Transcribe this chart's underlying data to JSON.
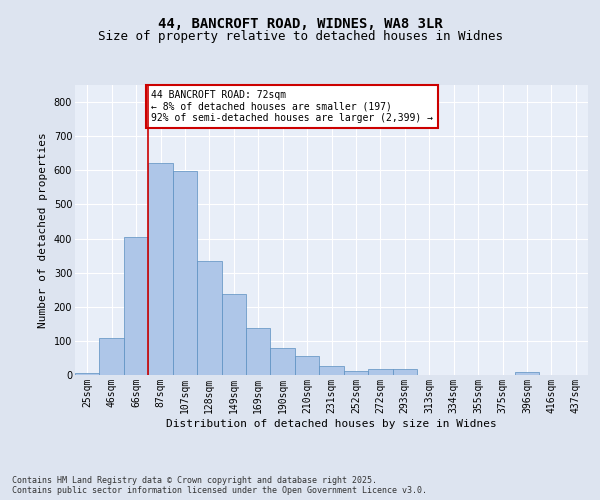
{
  "title1": "44, BANCROFT ROAD, WIDNES, WA8 3LR",
  "title2": "Size of property relative to detached houses in Widnes",
  "xlabel": "Distribution of detached houses by size in Widnes",
  "ylabel": "Number of detached properties",
  "categories": [
    "25sqm",
    "46sqm",
    "66sqm",
    "87sqm",
    "107sqm",
    "128sqm",
    "149sqm",
    "169sqm",
    "190sqm",
    "210sqm",
    "231sqm",
    "252sqm",
    "272sqm",
    "293sqm",
    "313sqm",
    "334sqm",
    "355sqm",
    "375sqm",
    "396sqm",
    "416sqm",
    "437sqm"
  ],
  "values": [
    5,
    108,
    405,
    620,
    598,
    335,
    237,
    137,
    78,
    55,
    27,
    12,
    17,
    17,
    0,
    0,
    0,
    0,
    8,
    0,
    0
  ],
  "bar_color": "#aec6e8",
  "bar_edge_color": "#5a8fc0",
  "background_color": "#dde4f0",
  "plot_bg_color": "#e8eef8",
  "grid_color": "#ffffff",
  "vline_x": 2.5,
  "vline_color": "#cc0000",
  "annotation_text": "44 BANCROFT ROAD: 72sqm\n← 8% of detached houses are smaller (197)\n92% of semi-detached houses are larger (2,399) →",
  "annotation_box_facecolor": "#ffffff",
  "annotation_box_edge_color": "#cc0000",
  "ylim": [
    0,
    850
  ],
  "yticks": [
    0,
    100,
    200,
    300,
    400,
    500,
    600,
    700,
    800
  ],
  "footer": "Contains HM Land Registry data © Crown copyright and database right 2025.\nContains public sector information licensed under the Open Government Licence v3.0.",
  "title_fontsize": 10,
  "subtitle_fontsize": 9,
  "axis_label_fontsize": 8,
  "tick_fontsize": 7,
  "annotation_fontsize": 7,
  "footer_fontsize": 6
}
